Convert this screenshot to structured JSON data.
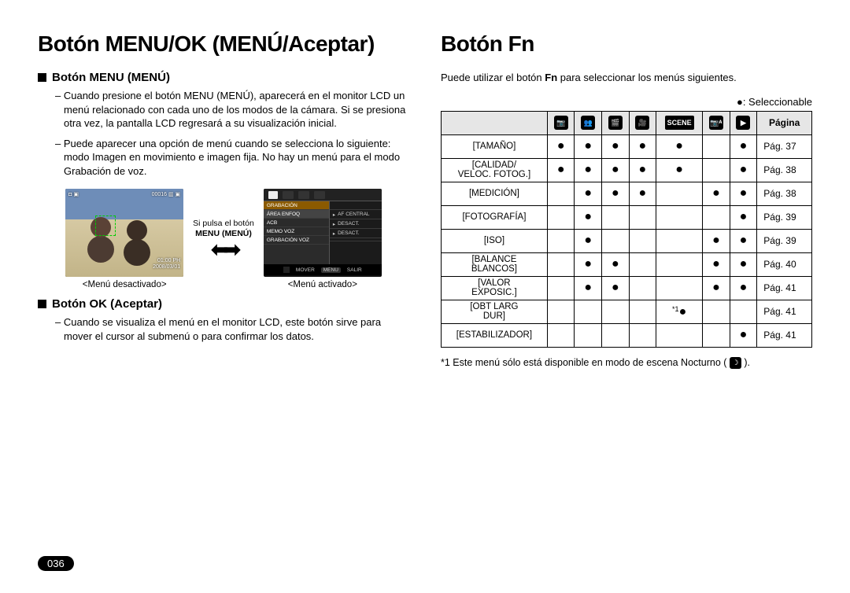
{
  "left": {
    "title": "Botón MENU/OK (MENÚ/Aceptar)",
    "sec1_heading": "Botón MENU (MENÚ)",
    "sec1_p1": "– Cuando presione el botón MENU (MENÚ), aparecerá en el monitor LCD un menú relacionado con cada uno de los modos de la cámara. Si se presiona otra vez, la pantalla LCD regresará a su visualización inicial.",
    "sec1_p2": "– Puede aparecer una opción de menú cuando se selecciona lo siguiente: modo Imagen en movimiento e imagen fija. No hay un menú para el modo Grabación de voz.",
    "between_label_a": "Si pulsa el botón",
    "between_label_b": "MENU (MENÚ)",
    "lcd_left_caption": "<Menú desactivado>",
    "lcd_right_caption": "<Menú activado>",
    "lcd_left": {
      "top_left": "◘ ▣",
      "top_right": "00016 ▥ ▣",
      "bottom_right_a": "01:00 PH",
      "bottom_right_b": "2008/03/01"
    },
    "lcd_right": {
      "title_row": "GRABACIÓN",
      "rows_left": [
        "ÁREA ENFOQ",
        "ACB",
        "MEMO VOZ",
        "GRABACIÓN VOZ"
      ],
      "rows_right": [
        "AF CENTRAL",
        "DESACT.",
        "DESACT.",
        ""
      ],
      "foot_a": "MOVER",
      "foot_b": "MENU",
      "foot_c": "SALIR"
    },
    "sec2_heading": "Botón OK (Aceptar)",
    "sec2_p1": "– Cuando se visualiza el menú en el monitor LCD, este botón sirve para mover el cursor al submenú o para confirmar los datos."
  },
  "right": {
    "title": "Botón Fn",
    "intro": "Puede utilizar el botón Fn para seleccionar los menús siguientes.",
    "legend": "●: Seleccionable",
    "table": {
      "page_header": "Página",
      "mode_labels": [
        "📷",
        "👥",
        "🎬",
        "🎥",
        "SCENE",
        "📷ᴬ",
        "▶"
      ],
      "marker_note": "*1",
      "rows": [
        {
          "name": "[TAMAÑO]",
          "cells": [
            1,
            1,
            1,
            1,
            1,
            0,
            1
          ],
          "page": "Pág. 37"
        },
        {
          "name": "[CALIDAD/\nVELOC. FOTOG.]",
          "cells": [
            1,
            1,
            1,
            1,
            1,
            0,
            1
          ],
          "page": "Pág. 38"
        },
        {
          "name": "[MEDICIÓN]",
          "cells": [
            0,
            1,
            1,
            1,
            0,
            1,
            1
          ],
          "page": "Pág. 38"
        },
        {
          "name": "[FOTOGRAFÍA]",
          "cells": [
            0,
            1,
            0,
            0,
            0,
            0,
            1
          ],
          "page": "Pág. 39"
        },
        {
          "name": "[ISO]",
          "cells": [
            0,
            1,
            0,
            0,
            0,
            1,
            1
          ],
          "page": "Pág. 39"
        },
        {
          "name": "[BALANCE\nBLANCOS]",
          "cells": [
            0,
            1,
            1,
            0,
            0,
            1,
            1
          ],
          "page": "Pág. 40"
        },
        {
          "name": "[VALOR\nEXPOSIC.]",
          "cells": [
            0,
            1,
            1,
            0,
            0,
            1,
            1
          ],
          "page": "Pág. 41"
        },
        {
          "name": "[OBT LARG\nDUR]",
          "cells": [
            0,
            0,
            0,
            0,
            2,
            0,
            0
          ],
          "page": "Pág. 41"
        },
        {
          "name": "[ESTABILIZADOR]",
          "cells": [
            0,
            0,
            0,
            0,
            0,
            0,
            1
          ],
          "page": "Pág. 41"
        }
      ]
    },
    "footnote": "*1 Este menú sólo está disponible en modo de escena Nocturno ( "
  },
  "page_number": "036",
  "colors": {
    "dot": "#000000",
    "header_bg": "#e6e6e6",
    "border": "#000000"
  }
}
